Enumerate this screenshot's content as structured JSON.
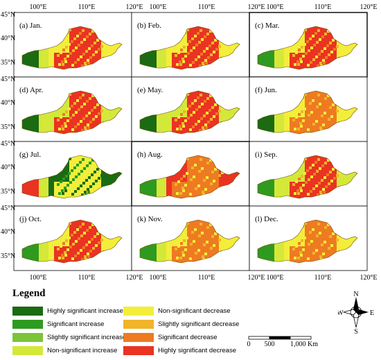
{
  "panels": [
    {
      "label": "(a) Jan.",
      "month": "Jan"
    },
    {
      "label": "(b) Feb.",
      "month": "Feb"
    },
    {
      "label": "(c) Mar.",
      "month": "Mar"
    },
    {
      "label": "(d) Apr.",
      "month": "Apr"
    },
    {
      "label": "(e) May.",
      "month": "May"
    },
    {
      "label": "(f) Jun.",
      "month": "Jun"
    },
    {
      "label": "(g) Jul.",
      "month": "Jul"
    },
    {
      "label": "(h) Aug.",
      "month": "Aug"
    },
    {
      "label": "(i) Sep.",
      "month": "Sep"
    },
    {
      "label": "(j) Oct.",
      "month": "Oct"
    },
    {
      "label": "(k) Nov.",
      "month": "Nov"
    },
    {
      "label": "(l) Dec.",
      "month": "Dec"
    }
  ],
  "axes": {
    "lon_ticks": [
      "100°E",
      "110°E",
      "120°E"
    ],
    "lat_ticks": [
      "45°N",
      "40°N",
      "35°N"
    ]
  },
  "legend": {
    "title": "Legend",
    "items": [
      {
        "label": "Highly significant increase",
        "color": "#1a6b12"
      },
      {
        "label": "Significant increase",
        "color": "#2e9a1f"
      },
      {
        "label": "Slightly significant increase",
        "color": "#7cc43a"
      },
      {
        "label": "Non-significant increase",
        "color": "#d4e83a"
      },
      {
        "label": "Non-significant decrease",
        "color": "#f2ee3a"
      },
      {
        "label": "Slightly significant decrease",
        "color": "#f1b42a"
      },
      {
        "label": "Significant decrease",
        "color": "#ee7a22"
      },
      {
        "label": "Highly significant decrease",
        "color": "#ea3322"
      }
    ]
  },
  "scale": {
    "ticks": [
      "0",
      "500",
      "1,000 Km"
    ]
  },
  "compass": {
    "n": "N",
    "s": "S",
    "e": "E",
    "w": "W"
  }
}
